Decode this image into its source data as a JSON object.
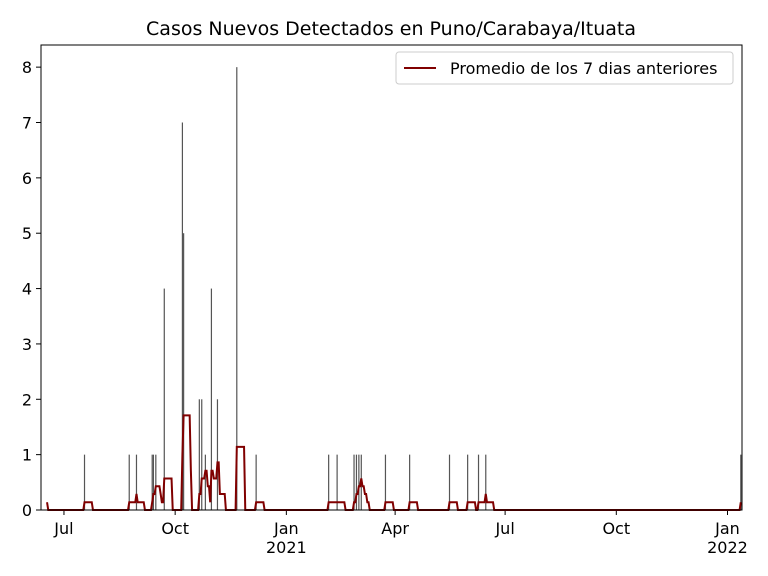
{
  "chart_data": {
    "type": "bar",
    "title": "Casos Nuevos Detectados en Puno/Carabaya/Ituata",
    "x": [
      "2020-07-18",
      "2020-08-24",
      "2020-08-30",
      "2020-09-12",
      "2020-09-13",
      "2020-09-15",
      "2020-09-22",
      "2020-10-07",
      "2020-10-08",
      "2020-10-21",
      "2020-10-23",
      "2020-10-26",
      "2020-10-31",
      "2020-11-05",
      "2020-11-21",
      "2020-12-07",
      "2021-02-05",
      "2021-02-12",
      "2021-02-26",
      "2021-02-28",
      "2021-03-02",
      "2021-03-04",
      "2021-03-24",
      "2021-04-13",
      "2021-05-16",
      "2021-05-31",
      "2021-06-09",
      "2021-06-15",
      "2022-01-12"
    ],
    "values": [
      1,
      1,
      1,
      1,
      1,
      1,
      4,
      7,
      5,
      2,
      2,
      1,
      4,
      2,
      8,
      1,
      1,
      1,
      1,
      1,
      1,
      1,
      1,
      1,
      1,
      1,
      1,
      1,
      1
    ],
    "color": "#555555",
    "series": [
      {
        "name": "Promedio de los 7 dias anteriores",
        "type": "line",
        "color": "#800000",
        "x": [
          "2020-06-17",
          "2020-06-18",
          "2020-07-17",
          "2020-07-18",
          "2020-07-24",
          "2020-07-25",
          "2020-08-23",
          "2020-08-24",
          "2020-08-29",
          "2020-08-30",
          "2020-08-31",
          "2020-09-05",
          "2020-09-06",
          "2020-09-11",
          "2020-09-12",
          "2020-09-13",
          "2020-09-14",
          "2020-09-15",
          "2020-09-18",
          "2020-09-19",
          "2020-09-20",
          "2020-09-21",
          "2020-09-22",
          "2020-09-28",
          "2020-09-29",
          "2020-10-06",
          "2020-10-07",
          "2020-10-08",
          "2020-10-13",
          "2020-10-14",
          "2020-10-15",
          "2020-10-20",
          "2020-10-21",
          "2020-10-22",
          "2020-10-23",
          "2020-10-25",
          "2020-10-26",
          "2020-10-27",
          "2020-10-28",
          "2020-10-29",
          "2020-10-30",
          "2020-10-31",
          "2020-11-01",
          "2020-11-02",
          "2020-11-04",
          "2020-11-05",
          "2020-11-06",
          "2020-11-07",
          "2020-11-11",
          "2020-11-12",
          "2020-11-20",
          "2020-11-21",
          "2020-11-27",
          "2020-11-28",
          "2020-12-06",
          "2020-12-07",
          "2020-12-13",
          "2020-12-14",
          "2021-02-04",
          "2021-02-05",
          "2021-02-18",
          "2021-02-19",
          "2021-02-25",
          "2021-02-26",
          "2021-02-27",
          "2021-02-28",
          "2021-03-01",
          "2021-03-02",
          "2021-03-03",
          "2021-03-04",
          "2021-03-05",
          "2021-03-06",
          "2021-03-07",
          "2021-03-08",
          "2021-03-09",
          "2021-03-10",
          "2021-03-11",
          "2021-03-23",
          "2021-03-24",
          "2021-03-30",
          "2021-03-31",
          "2021-04-12",
          "2021-04-13",
          "2021-04-19",
          "2021-04-20",
          "2021-05-15",
          "2021-05-16",
          "2021-05-22",
          "2021-05-23",
          "2021-05-30",
          "2021-05-31",
          "2021-06-06",
          "2021-06-07",
          "2021-06-08",
          "2021-06-09",
          "2021-06-14",
          "2021-06-15",
          "2021-06-16",
          "2021-06-21",
          "2021-06-22",
          "2022-01-11",
          "2022-01-12"
        ],
        "values": [
          0.14,
          0,
          0,
          0.14,
          0.14,
          0,
          0,
          0.14,
          0.14,
          0.29,
          0.14,
          0.14,
          0,
          0,
          0.14,
          0.29,
          0.29,
          0.43,
          0.43,
          0.29,
          0.14,
          0.14,
          0.57,
          0.57,
          0,
          0,
          1,
          1.71,
          1.71,
          0.71,
          0,
          0,
          0.29,
          0.29,
          0.57,
          0.57,
          0.71,
          0.71,
          0.43,
          0.43,
          0.14,
          0.71,
          0.71,
          0.57,
          0.57,
          0.86,
          0.86,
          0.29,
          0.29,
          0,
          0,
          1.14,
          1.14,
          0,
          0,
          0.14,
          0.14,
          0,
          0,
          0.14,
          0.14,
          0,
          0,
          0.14,
          0.14,
          0.29,
          0.29,
          0.43,
          0.43,
          0.57,
          0.43,
          0.43,
          0.29,
          0.29,
          0.14,
          0.14,
          0,
          0,
          0.14,
          0.14,
          0,
          0,
          0.14,
          0.14,
          0,
          0,
          0.14,
          0.14,
          0,
          0,
          0.14,
          0.14,
          0,
          0,
          0.14,
          0.14,
          0.29,
          0.14,
          0.14,
          0,
          0,
          0.14
        ]
      }
    ],
    "xlim": [
      "2020-06-12",
      "2022-01-13"
    ],
    "xticks": [
      {
        "value": "2020-07-01",
        "label": "Jul"
      },
      {
        "value": "2020-10-01",
        "label": "Oct"
      },
      {
        "value": "2021-01-01",
        "label": "Jan\n2021"
      },
      {
        "value": "2021-04-01",
        "label": "Apr"
      },
      {
        "value": "2021-07-01",
        "label": "Jul"
      },
      {
        "value": "2021-10-01",
        "label": "Oct"
      },
      {
        "value": "2022-01-01",
        "label": "Jan\n2022"
      }
    ],
    "ylim": [
      0,
      8.4
    ],
    "yticks": [
      0,
      1,
      2,
      3,
      4,
      5,
      6,
      7,
      8
    ],
    "legend": "upper right"
  }
}
